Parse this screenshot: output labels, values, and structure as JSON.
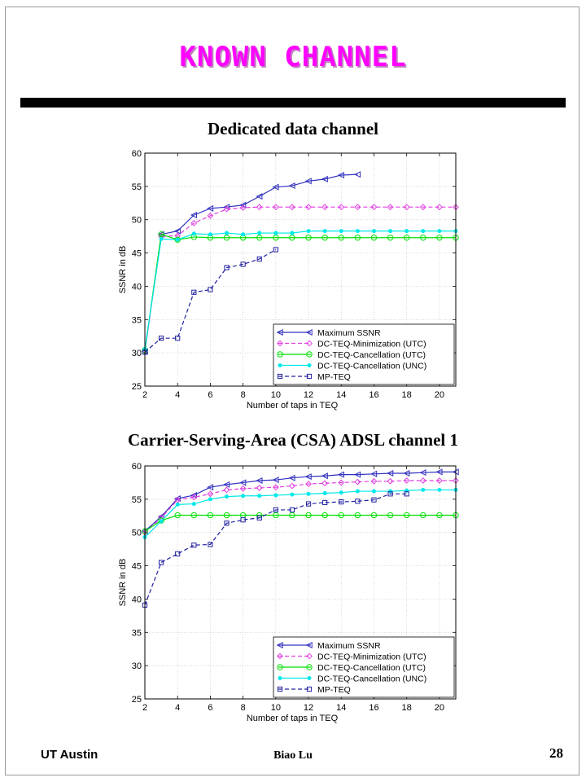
{
  "slide": {
    "title": "KNOWN CHANNEL",
    "footer_left": "UT Austin",
    "footer_center": "Biao Lu",
    "page_number": "28",
    "title_color": "#ff00ff"
  },
  "chart_data": [
    {
      "type": "line",
      "title": "Dedicated data channel",
      "xlabel": "Number of taps in TEQ",
      "ylabel": "SSNR in dB",
      "xlim": [
        2,
        21
      ],
      "ylim": [
        25,
        60
      ],
      "xticks": [
        2,
        4,
        6,
        8,
        10,
        12,
        14,
        16,
        18,
        20
      ],
      "yticks": [
        25,
        30,
        35,
        40,
        45,
        50,
        55,
        60
      ],
      "grid": true,
      "legend_position": "lower-right",
      "series": [
        {
          "name": "Maximum SSNR",
          "color": "#3030c0",
          "dash": "solid",
          "marker": "triangle-left",
          "x": [
            2,
            3,
            4,
            5,
            6,
            7,
            8,
            9,
            10,
            11,
            12,
            13,
            14,
            15
          ],
          "y": [
            30.2,
            47.8,
            48.3,
            50.7,
            51.7,
            51.9,
            52.2,
            53.5,
            54.9,
            55.1,
            55.8,
            56.1,
            56.7,
            56.8
          ]
        },
        {
          "name": "DC-TEQ-Minimization (UTC)",
          "color": "#e040e0",
          "dash": "dashed",
          "marker": "diamond",
          "x": [
            2,
            3,
            4,
            5,
            6,
            7,
            8,
            9,
            10,
            11,
            12,
            13,
            14,
            15,
            16,
            17,
            18,
            19,
            20,
            21
          ],
          "y": [
            30.2,
            47.5,
            47.6,
            49.5,
            50.6,
            51.6,
            51.8,
            51.9,
            51.9,
            51.9,
            51.9,
            51.9,
            51.9,
            51.9,
            51.9,
            51.9,
            51.9,
            51.9,
            51.9,
            51.9
          ]
        },
        {
          "name": "DC-TEQ-Cancellation (UTC)",
          "color": "#00e000",
          "dash": "solid",
          "marker": "circle",
          "x": [
            2,
            3,
            4,
            5,
            6,
            7,
            8,
            9,
            10,
            11,
            12,
            13,
            14,
            15,
            16,
            17,
            18,
            19,
            20,
            21
          ],
          "y": [
            30.4,
            47.8,
            47.0,
            47.4,
            47.3,
            47.3,
            47.3,
            47.3,
            47.3,
            47.3,
            47.3,
            47.3,
            47.3,
            47.3,
            47.3,
            47.3,
            47.3,
            47.3,
            47.3,
            47.3
          ]
        },
        {
          "name": "DC-TEQ-Cancellation (UNC)",
          "color": "#00e8e8",
          "dash": "solid",
          "marker": "dot",
          "x": [
            2,
            3,
            4,
            5,
            6,
            7,
            8,
            9,
            10,
            11,
            12,
            13,
            14,
            15,
            16,
            17,
            18,
            19,
            20,
            21
          ],
          "y": [
            30.6,
            47.1,
            47.0,
            47.9,
            47.8,
            48.0,
            47.8,
            48.0,
            48.0,
            48.0,
            48.3,
            48.3,
            48.3,
            48.3,
            48.3,
            48.3,
            48.3,
            48.3,
            48.3,
            48.3
          ]
        },
        {
          "name": "MP-TEQ",
          "color": "#2020a0",
          "dash": "dashed",
          "marker": "square",
          "x": [
            2,
            3,
            4,
            5,
            6,
            7,
            8,
            9,
            10
          ],
          "y": [
            30.1,
            32.2,
            32.2,
            39.1,
            39.5,
            42.8,
            43.3,
            44.1,
            45.5
          ]
        }
      ]
    },
    {
      "type": "line",
      "title": "Carrier-Serving-Area (CSA) ADSL channel 1",
      "xlabel": "Number of taps in TEQ",
      "ylabel": "SSNR in dB",
      "xlim": [
        2,
        21
      ],
      "ylim": [
        25,
        60
      ],
      "xticks": [
        2,
        4,
        6,
        8,
        10,
        12,
        14,
        16,
        18,
        20
      ],
      "yticks": [
        25,
        30,
        35,
        40,
        45,
        50,
        55,
        60
      ],
      "grid": true,
      "legend_position": "lower-right",
      "series": [
        {
          "name": "Maximum SSNR",
          "color": "#3030c0",
          "dash": "solid",
          "marker": "triangle-left",
          "x": [
            2,
            3,
            4,
            5,
            6,
            7,
            8,
            9,
            10,
            11,
            12,
            13,
            14,
            15,
            16,
            17,
            18,
            19,
            20,
            21
          ],
          "y": [
            50.2,
            52.4,
            55.1,
            55.6,
            56.8,
            57.2,
            57.5,
            57.8,
            57.9,
            58.2,
            58.4,
            58.5,
            58.7,
            58.7,
            58.8,
            58.9,
            58.9,
            59.0,
            59.1,
            59.1
          ]
        },
        {
          "name": "DC-TEQ-Minimization (UTC)",
          "color": "#e040e0",
          "dash": "dashed",
          "marker": "diamond",
          "x": [
            2,
            3,
            4,
            5,
            6,
            7,
            8,
            9,
            10,
            11,
            12,
            13,
            14,
            15,
            16,
            17,
            18,
            19,
            20,
            21
          ],
          "y": [
            50.0,
            52.2,
            54.9,
            55.3,
            55.8,
            56.4,
            56.6,
            56.7,
            56.8,
            57.0,
            57.3,
            57.4,
            57.5,
            57.6,
            57.7,
            57.7,
            57.8,
            57.8,
            57.8,
            57.8
          ]
        },
        {
          "name": "DC-TEQ-Cancellation (UTC)",
          "color": "#00e000",
          "dash": "solid",
          "marker": "circle",
          "x": [
            2,
            3,
            4,
            5,
            6,
            7,
            8,
            9,
            10,
            11,
            12,
            13,
            14,
            15,
            16,
            17,
            18,
            19,
            20,
            21
          ],
          "y": [
            50.2,
            51.8,
            52.6,
            52.6,
            52.6,
            52.6,
            52.6,
            52.6,
            52.6,
            52.6,
            52.6,
            52.6,
            52.6,
            52.6,
            52.6,
            52.6,
            52.6,
            52.6,
            52.6,
            52.6
          ]
        },
        {
          "name": "DC-TEQ-Cancellation (UNC)",
          "color": "#00e8e8",
          "dash": "solid",
          "marker": "dot",
          "x": [
            2,
            3,
            4,
            5,
            6,
            7,
            8,
            9,
            10,
            11,
            12,
            13,
            14,
            15,
            16,
            17,
            18,
            19,
            20,
            21
          ],
          "y": [
            49.3,
            51.7,
            54.2,
            54.3,
            55.0,
            55.4,
            55.5,
            55.5,
            55.6,
            55.7,
            55.8,
            55.9,
            56.0,
            56.2,
            56.2,
            56.2,
            56.3,
            56.4,
            56.4,
            56.4
          ]
        },
        {
          "name": "MP-TEQ",
          "color": "#2020a0",
          "dash": "dashed",
          "marker": "square",
          "x": [
            2,
            3,
            4,
            5,
            6,
            7,
            8,
            9,
            10,
            11,
            12,
            13,
            14,
            15,
            16,
            17,
            18
          ],
          "y": [
            39.1,
            45.5,
            46.8,
            48.1,
            48.2,
            51.4,
            51.9,
            52.2,
            53.4,
            53.4,
            54.3,
            54.5,
            54.6,
            54.7,
            54.9,
            55.8,
            55.8
          ]
        }
      ]
    }
  ]
}
